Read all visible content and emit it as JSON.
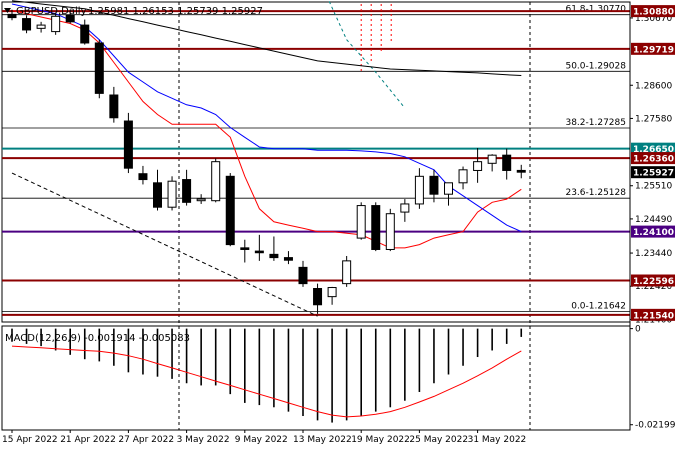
{
  "header": {
    "symbol": "GBPUSD,Daily",
    "ohlc": "1.25981 1.26153 1.25739 1.25927"
  },
  "indicator_label": "MACD(12,26,9) -0.001914 -0.005083",
  "colors": {
    "background": "#ffffff",
    "candle_bull_body": "#ffffff",
    "candle_bear_body": "#000000",
    "line_red": "#ff0000",
    "line_blue": "#0000ff",
    "line_black": "#000000",
    "support_resistance": "#8b0000",
    "level_purple": "#4b0082",
    "level_teal": "#008080",
    "fib_line": "#000000",
    "label_red_bg": "#c00000",
    "label_darkred_bg": "#8b0000",
    "label_purple_bg": "#4b0082",
    "label_teal_bg": "#008080",
    "label_black_bg": "#000000"
  },
  "chart_data": [
    {
      "type": "candlestick",
      "title": "GBPUSD,Daily",
      "ylim": [
        1.2132,
        1.3116
      ],
      "y_axis_ticks": [
        "1.30670",
        "1.28600",
        "1.27580",
        "1.25510",
        "1.24490",
        "1.23440",
        "1.22420",
        "1.21400"
      ],
      "x_axis_ticks": [
        "15 Apr 2022",
        "21 Apr 2022",
        "27 Apr 2022",
        "3 May 2022",
        "9 May 2022",
        "13 May 2022",
        "19 May 2022",
        "25 May 2022",
        "31 May 2022"
      ],
      "candles": [
        {
          "open": 1.3078,
          "high": 1.3092,
          "low": 1.306,
          "close": 1.3068
        },
        {
          "open": 1.3065,
          "high": 1.3075,
          "low": 1.302,
          "close": 1.303
        },
        {
          "open": 1.3035,
          "high": 1.3055,
          "low": 1.3022,
          "close": 1.3045
        },
        {
          "open": 1.3025,
          "high": 1.308,
          "low": 1.3015,
          "close": 1.3072
        },
        {
          "open": 1.3075,
          "high": 1.3092,
          "low": 1.305,
          "close": 1.3055
        },
        {
          "open": 1.3045,
          "high": 1.3062,
          "low": 1.2985,
          "close": 1.299
        },
        {
          "open": 1.299,
          "high": 1.3,
          "low": 1.282,
          "close": 1.2835
        },
        {
          "open": 1.283,
          "high": 1.2855,
          "low": 1.2745,
          "close": 1.276
        },
        {
          "open": 1.275,
          "high": 1.2775,
          "low": 1.259,
          "close": 1.2605
        },
        {
          "open": 1.2588,
          "high": 1.2612,
          "low": 1.2555,
          "close": 1.257
        },
        {
          "open": 1.256,
          "high": 1.26,
          "low": 1.2475,
          "close": 1.2485
        },
        {
          "open": 1.2485,
          "high": 1.258,
          "low": 1.2475,
          "close": 1.2565
        },
        {
          "open": 1.257,
          "high": 1.26,
          "low": 1.249,
          "close": 1.25
        },
        {
          "open": 1.2505,
          "high": 1.2525,
          "low": 1.2495,
          "close": 1.251
        },
        {
          "open": 1.2505,
          "high": 1.2635,
          "low": 1.25,
          "close": 1.2625
        },
        {
          "open": 1.258,
          "high": 1.259,
          "low": 1.2365,
          "close": 1.237
        },
        {
          "open": 1.236,
          "high": 1.2385,
          "low": 1.2315,
          "close": 1.2355
        },
        {
          "open": 1.235,
          "high": 1.24,
          "low": 1.232,
          "close": 1.2345
        },
        {
          "open": 1.234,
          "high": 1.2395,
          "low": 1.232,
          "close": 1.233
        },
        {
          "open": 1.233,
          "high": 1.235,
          "low": 1.231,
          "close": 1.2322
        },
        {
          "open": 1.23,
          "high": 1.232,
          "low": 1.224,
          "close": 1.225
        },
        {
          "open": 1.2235,
          "high": 1.225,
          "low": 1.2157,
          "close": 1.2185
        },
        {
          "open": 1.221,
          "high": 1.224,
          "low": 1.2185,
          "close": 1.2238
        },
        {
          "open": 1.225,
          "high": 1.2335,
          "low": 1.224,
          "close": 1.232
        },
        {
          "open": 1.239,
          "high": 1.25,
          "low": 1.2385,
          "close": 1.249
        },
        {
          "open": 1.249,
          "high": 1.25,
          "low": 1.235,
          "close": 1.2355
        },
        {
          "open": 1.2355,
          "high": 1.248,
          "low": 1.235,
          "close": 1.2465
        },
        {
          "open": 1.247,
          "high": 1.251,
          "low": 1.244,
          "close": 1.2495
        },
        {
          "open": 1.2495,
          "high": 1.2605,
          "low": 1.248,
          "close": 1.258
        },
        {
          "open": 1.258,
          "high": 1.26,
          "low": 1.25,
          "close": 1.2525
        },
        {
          "open": 1.2525,
          "high": 1.256,
          "low": 1.249,
          "close": 1.256
        },
        {
          "open": 1.256,
          "high": 1.261,
          "low": 1.254,
          "close": 1.26
        },
        {
          "open": 1.2598,
          "high": 1.2667,
          "low": 1.256,
          "close": 1.2625
        },
        {
          "open": 1.262,
          "high": 1.2648,
          "low": 1.2595,
          "close": 1.2645
        },
        {
          "open": 1.2645,
          "high": 1.2665,
          "low": 1.257,
          "close": 1.2598
        },
        {
          "open": 1.25981,
          "high": 1.26153,
          "low": 1.25739,
          "close": 1.25927
        }
      ],
      "horizontal_levels": [
        {
          "price": 1.3088,
          "label": "1.30880",
          "style": "darkred"
        },
        {
          "price": 1.2972,
          "label": "1.29719",
          "style": "darkred"
        },
        {
          "price": 1.2665,
          "label": "1.26650",
          "style": "teal"
        },
        {
          "price": 1.2636,
          "label": "1.26360",
          "style": "darkred"
        },
        {
          "price": 1.25927,
          "label": "1.25927",
          "style": "black"
        },
        {
          "price": 1.241,
          "label": "1.24100",
          "style": "purple"
        },
        {
          "price": 1.22596,
          "label": "1.22596",
          "style": "darkred"
        },
        {
          "price": 1.2154,
          "label": "1.21540",
          "style": "darkred"
        }
      ],
      "fibonacci": [
        {
          "price": 1.3077,
          "label": "61.8-1.30770"
        },
        {
          "price": 1.29028,
          "label": "50.0-1.29028"
        },
        {
          "price": 1.27285,
          "label": "38.2-1.27285"
        },
        {
          "price": 1.25128,
          "label": "23.6-1.25128"
        },
        {
          "price": 1.21642,
          "label": "0.0-1.21642"
        }
      ],
      "series": [
        {
          "type": "line",
          "color": "red",
          "values": [
            1.309,
            1.308,
            1.307,
            1.306,
            1.305,
            1.303,
            1.299,
            1.293,
            1.287,
            1.281,
            1.277,
            1.274,
            1.274,
            1.274,
            1.274,
            1.27,
            1.258,
            1.248,
            1.244,
            1.243,
            1.242,
            1.241,
            1.241,
            1.2405,
            1.24,
            1.238,
            1.236,
            1.236,
            1.237,
            1.239,
            1.24,
            1.241,
            1.247,
            1.25,
            1.251,
            1.254
          ]
        },
        {
          "type": "line",
          "color": "blue",
          "values": [
            1.311,
            1.31,
            1.309,
            1.308,
            1.306,
            1.304,
            1.3,
            1.295,
            1.29,
            1.287,
            1.284,
            1.282,
            1.28,
            1.279,
            1.277,
            1.273,
            1.27,
            1.267,
            1.2665,
            1.2665,
            1.2665,
            1.266,
            1.266,
            1.266,
            1.2658,
            1.2655,
            1.265,
            1.264,
            1.262,
            1.26,
            1.255,
            1.252,
            1.249,
            1.246,
            1.243,
            1.241
          ]
        },
        {
          "type": "line",
          "color": "black",
          "values": [
            1.312,
            1.3115,
            1.311,
            1.3105,
            1.31,
            1.3095,
            1.3085,
            1.3075,
            1.3065,
            1.3055,
            1.3045,
            1.3035,
            1.3025,
            1.3015,
            1.3005,
            1.2995,
            1.2985,
            1.2975,
            1.2965,
            1.2955,
            1.2945,
            1.2935,
            1.293,
            1.2925,
            1.292,
            1.2915,
            1.291,
            1.2908,
            1.2906,
            1.2904,
            1.2902,
            1.29,
            1.2898,
            1.2895,
            1.2892,
            1.289
          ]
        }
      ]
    },
    {
      "type": "bar",
      "title": "MACD(12,26,9) -0.001914 -0.005083",
      "ylim": [
        -0.0232,
        0.0006
      ],
      "y_axis_ticks": [
        "0",
        "-0.021993"
      ],
      "histogram": [
        -0.003,
        -0.0035,
        -0.004,
        -0.005,
        -0.006,
        -0.007,
        -0.0075,
        -0.0085,
        -0.01,
        -0.0105,
        -0.011,
        -0.0115,
        -0.0125,
        -0.013,
        -0.013,
        -0.015,
        -0.017,
        -0.0175,
        -0.018,
        -0.019,
        -0.02,
        -0.021,
        -0.0215,
        -0.021,
        -0.02,
        -0.019,
        -0.018,
        -0.0165,
        -0.0145,
        -0.0125,
        -0.0105,
        -0.0085,
        -0.0065,
        -0.005,
        -0.0035,
        -0.0019
      ],
      "signal": [
        -0.004,
        -0.0042,
        -0.0044,
        -0.0046,
        -0.0048,
        -0.005,
        -0.0052,
        -0.0056,
        -0.0062,
        -0.007,
        -0.008,
        -0.009,
        -0.01,
        -0.011,
        -0.012,
        -0.013,
        -0.014,
        -0.015,
        -0.016,
        -0.017,
        -0.018,
        -0.019,
        -0.0198,
        -0.0202,
        -0.02,
        -0.0196,
        -0.019,
        -0.018,
        -0.0168,
        -0.0155,
        -0.014,
        -0.0125,
        -0.0108,
        -0.009,
        -0.007,
        -0.0051
      ]
    }
  ]
}
